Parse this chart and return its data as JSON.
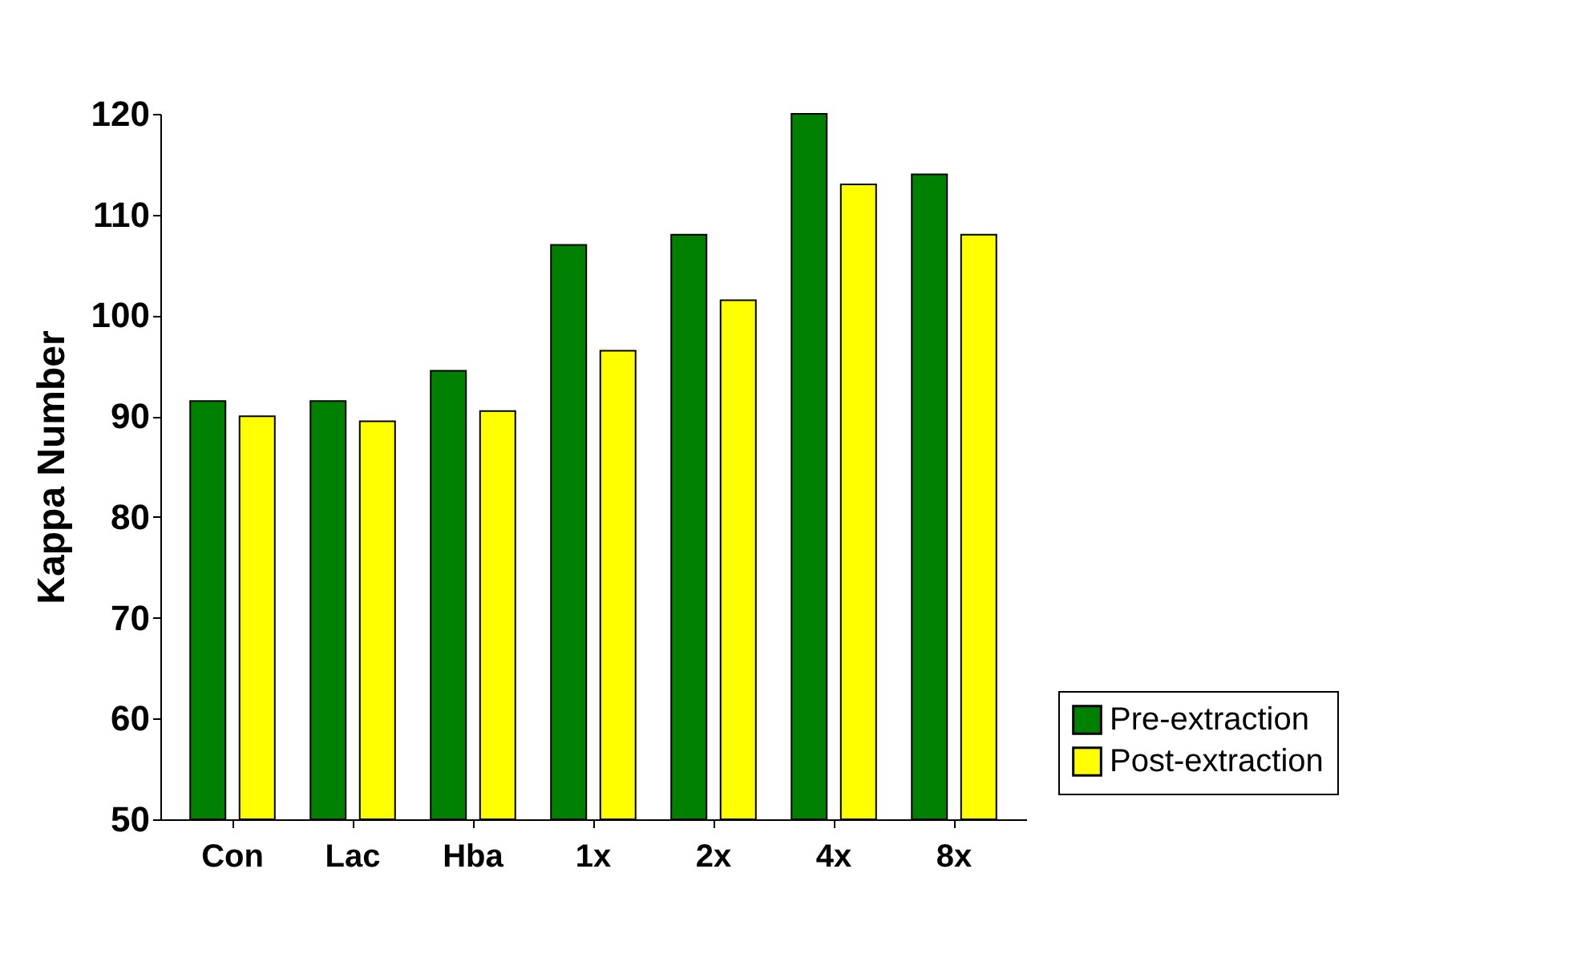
{
  "chart_data": {
    "type": "bar",
    "ylabel": "Kappa Number",
    "categories": [
      "Con",
      "Lac",
      "Hba",
      "1x",
      "2x",
      "4x",
      "8x"
    ],
    "series": [
      {
        "name": "Pre-extraction",
        "color": "#008000",
        "values": [
          91.5,
          91.5,
          94.5,
          107,
          108,
          120,
          114
        ]
      },
      {
        "name": "Post-extraction",
        "color": "#ffff00",
        "values": [
          90,
          89.5,
          90.5,
          96.5,
          101.5,
          113,
          108
        ]
      }
    ],
    "ylim": [
      50,
      120
    ],
    "yticks": [
      50,
      60,
      70,
      80,
      90,
      100,
      110,
      120
    ],
    "grid": false,
    "legend": "bottom right"
  }
}
